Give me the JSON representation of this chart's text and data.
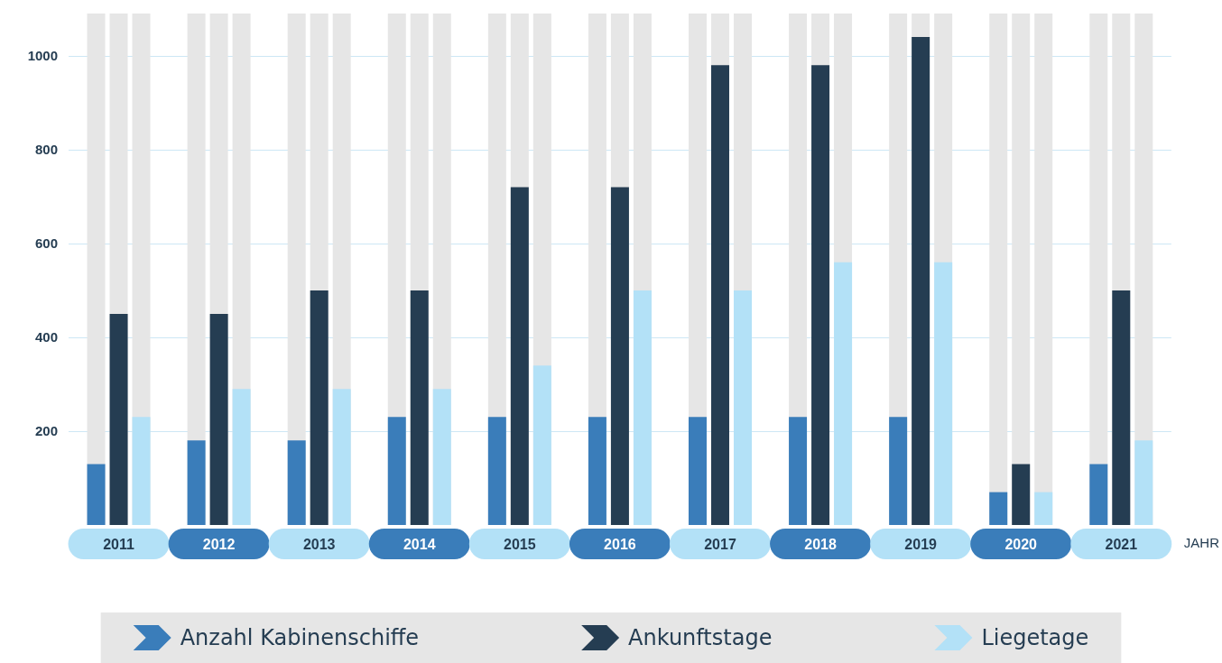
{
  "chart_data": {
    "type": "bar",
    "xlabel": "JAHR",
    "categories": [
      "2011",
      "2012",
      "2013",
      "2014",
      "2015",
      "2016",
      "2017",
      "2018",
      "2019",
      "2020",
      "2021"
    ],
    "series": [
      {
        "name": "Anzahl Kabinenschiffe",
        "color": "#3a7dba",
        "values": [
          130,
          180,
          180,
          230,
          230,
          230,
          230,
          230,
          230,
          70,
          130
        ]
      },
      {
        "name": "Ankunftstage",
        "color": "#253d52",
        "values": [
          450,
          450,
          500,
          500,
          720,
          720,
          980,
          980,
          1040,
          130,
          500
        ]
      },
      {
        "name": "Liegetage",
        "color": "#b3e1f7",
        "values": [
          230,
          290,
          290,
          290,
          340,
          500,
          500,
          560,
          560,
          70,
          180
        ]
      }
    ],
    "ylim": [
      0,
      1090
    ],
    "yticks": [
      200,
      400,
      600,
      800,
      1000
    ],
    "grid": "y",
    "legend": "bottom"
  }
}
